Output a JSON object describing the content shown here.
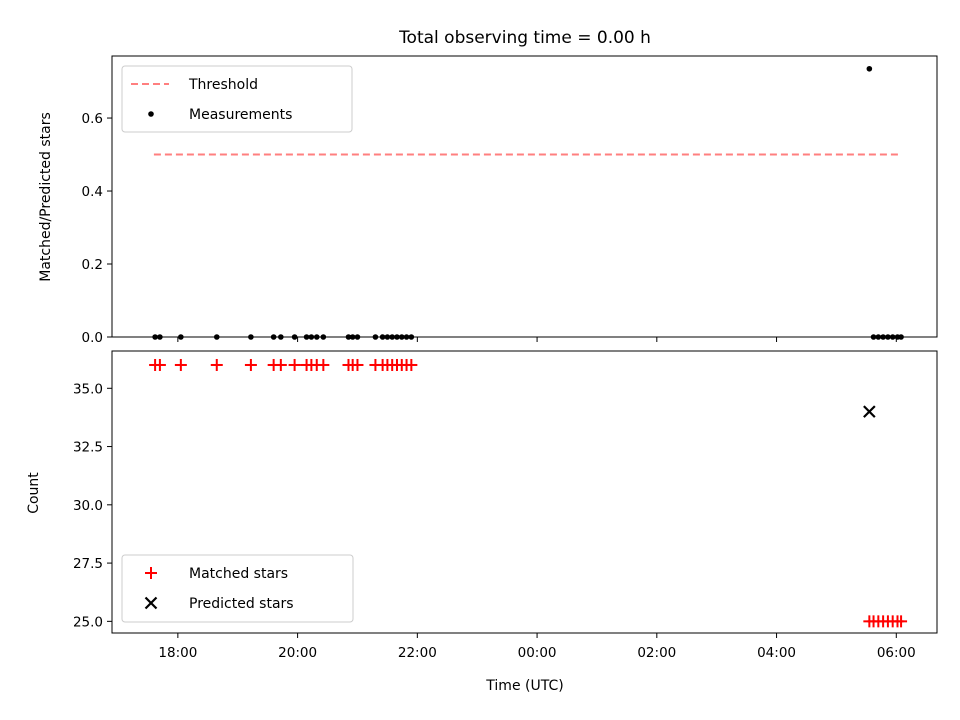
{
  "chart_data": [
    {
      "type": "scatter",
      "title": "Total observing time = 0.00 h",
      "xlabel": "",
      "ylabel": "Matched/Predicted stars",
      "ylim": [
        0,
        0.77
      ],
      "yticks": [
        0.0,
        0.2,
        0.4,
        0.6
      ],
      "ytick_labels": [
        "0.0",
        "0.2",
        "0.4",
        "0.6"
      ],
      "legend_position": "upper-left",
      "threshold": {
        "name": "Threshold",
        "value": 0.5,
        "x_start_h": 17.6,
        "x_end_h": 30.08,
        "color": "#ff7f7f",
        "style": "dashed"
      },
      "series": [
        {
          "name": "Measurements",
          "color": "#000000",
          "marker": "dot",
          "points": [
            {
              "x": 17.62,
              "y": 0.0
            },
            {
              "x": 17.7,
              "y": 0.0
            },
            {
              "x": 18.05,
              "y": 0.0
            },
            {
              "x": 18.65,
              "y": 0.0
            },
            {
              "x": 19.22,
              "y": 0.0
            },
            {
              "x": 19.6,
              "y": 0.0
            },
            {
              "x": 19.72,
              "y": 0.0
            },
            {
              "x": 19.95,
              "y": 0.0
            },
            {
              "x": 20.15,
              "y": 0.0
            },
            {
              "x": 20.23,
              "y": 0.0
            },
            {
              "x": 20.32,
              "y": 0.0
            },
            {
              "x": 20.43,
              "y": 0.0
            },
            {
              "x": 20.85,
              "y": 0.0
            },
            {
              "x": 20.92,
              "y": 0.0
            },
            {
              "x": 21.0,
              "y": 0.0
            },
            {
              "x": 21.3,
              "y": 0.0
            },
            {
              "x": 21.42,
              "y": 0.0
            },
            {
              "x": 21.5,
              "y": 0.0
            },
            {
              "x": 21.58,
              "y": 0.0
            },
            {
              "x": 21.66,
              "y": 0.0
            },
            {
              "x": 21.74,
              "y": 0.0
            },
            {
              "x": 21.82,
              "y": 0.0
            },
            {
              "x": 21.9,
              "y": 0.0
            },
            {
              "x": 29.55,
              "y": 0.735
            },
            {
              "x": 29.62,
              "y": 0.0
            },
            {
              "x": 29.7,
              "y": 0.0
            },
            {
              "x": 29.78,
              "y": 0.0
            },
            {
              "x": 29.86,
              "y": 0.0
            },
            {
              "x": 29.94,
              "y": 0.0
            },
            {
              "x": 30.02,
              "y": 0.0
            },
            {
              "x": 30.08,
              "y": 0.0
            }
          ]
        }
      ]
    },
    {
      "type": "scatter",
      "title": "",
      "xlabel": "Time (UTC)",
      "ylabel": "Count",
      "ylim": [
        24.5,
        36.6
      ],
      "yticks": [
        25.0,
        27.5,
        30.0,
        32.5,
        35.0
      ],
      "ytick_labels": [
        "25.0",
        "27.5",
        "30.0",
        "32.5",
        "35.0"
      ],
      "xlim_hours": [
        16.9,
        30.68
      ],
      "xticks_hours": [
        18,
        20,
        22,
        24,
        26,
        28,
        30
      ],
      "xtick_labels": [
        "18:00",
        "20:00",
        "22:00",
        "00:00",
        "02:00",
        "04:00",
        "06:00"
      ],
      "legend_position": "lower-left",
      "series": [
        {
          "name": "Matched stars",
          "color": "#ff0000",
          "marker": "plus",
          "points": [
            {
              "x": 17.62,
              "y": 36
            },
            {
              "x": 17.7,
              "y": 36
            },
            {
              "x": 18.05,
              "y": 36
            },
            {
              "x": 18.65,
              "y": 36
            },
            {
              "x": 19.22,
              "y": 36
            },
            {
              "x": 19.6,
              "y": 36
            },
            {
              "x": 19.72,
              "y": 36
            },
            {
              "x": 19.95,
              "y": 36
            },
            {
              "x": 20.15,
              "y": 36
            },
            {
              "x": 20.23,
              "y": 36
            },
            {
              "x": 20.32,
              "y": 36
            },
            {
              "x": 20.43,
              "y": 36
            },
            {
              "x": 20.85,
              "y": 36
            },
            {
              "x": 20.92,
              "y": 36
            },
            {
              "x": 21.0,
              "y": 36
            },
            {
              "x": 21.3,
              "y": 36
            },
            {
              "x": 21.42,
              "y": 36
            },
            {
              "x": 21.5,
              "y": 36
            },
            {
              "x": 21.58,
              "y": 36
            },
            {
              "x": 21.66,
              "y": 36
            },
            {
              "x": 21.74,
              "y": 36
            },
            {
              "x": 21.82,
              "y": 36
            },
            {
              "x": 21.9,
              "y": 36
            },
            {
              "x": 29.55,
              "y": 25
            },
            {
              "x": 29.62,
              "y": 25
            },
            {
              "x": 29.7,
              "y": 25
            },
            {
              "x": 29.78,
              "y": 25
            },
            {
              "x": 29.86,
              "y": 25
            },
            {
              "x": 29.94,
              "y": 25
            },
            {
              "x": 30.02,
              "y": 25
            },
            {
              "x": 30.08,
              "y": 25
            }
          ]
        },
        {
          "name": "Predicted stars",
          "color": "#000000",
          "marker": "x",
          "points": [
            {
              "x": 29.55,
              "y": 34
            }
          ]
        }
      ]
    }
  ]
}
